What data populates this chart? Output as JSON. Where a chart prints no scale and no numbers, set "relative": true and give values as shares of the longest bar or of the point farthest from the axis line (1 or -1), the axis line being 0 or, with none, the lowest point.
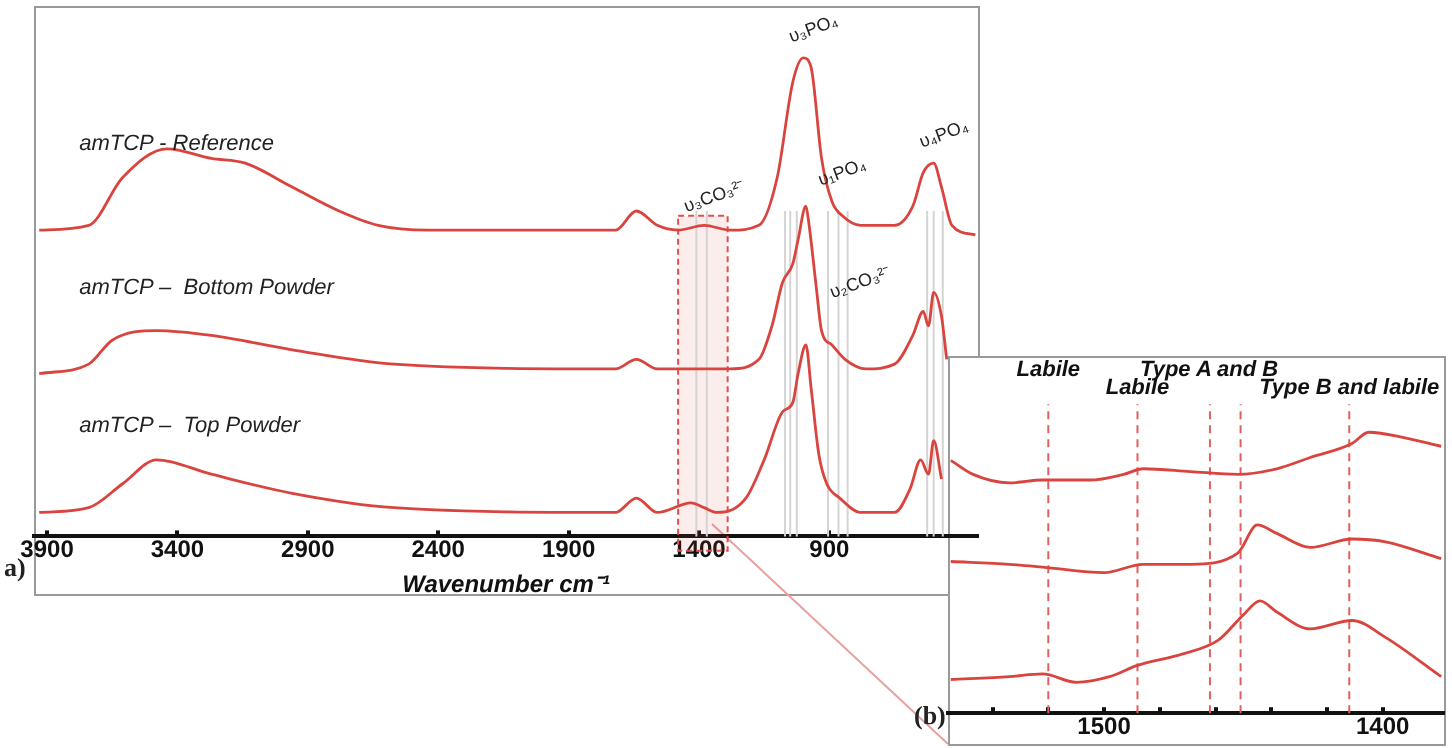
{
  "chart_data": [
    {
      "type": "line",
      "relative": true,
      "xlabel": "Wavenumber cm⁻¹",
      "xlim": [
        3950,
        330
      ],
      "xticks": [
        3900,
        3400,
        2900,
        2400,
        1900,
        1400,
        900
      ],
      "grid": false,
      "legend": false,
      "marker": "none",
      "series": [
        {
          "name": "amTCP - Reference",
          "color": "#d9443f",
          "x": [
            3930,
            3740,
            3610,
            3440,
            3270,
            3140,
            2960,
            2780,
            2630,
            2440,
            1720,
            1640,
            1560,
            1480,
            1380,
            1280,
            1170,
            1100,
            1040,
            1000,
            970,
            930,
            890,
            850,
            780,
            650,
            580,
            540,
            500,
            470,
            430,
            340
          ],
          "values": [
            0.64,
            0.65,
            0.75,
            0.81,
            0.79,
            0.78,
            0.73,
            0.68,
            0.65,
            0.64,
            0.64,
            0.68,
            0.65,
            0.64,
            0.65,
            0.64,
            0.65,
            0.75,
            0.95,
            1.0,
            0.98,
            0.79,
            0.7,
            0.67,
            0.65,
            0.65,
            0.69,
            0.76,
            0.78,
            0.73,
            0.65,
            0.63
          ]
        },
        {
          "name": "amTCP –  Bottom Powder",
          "color": "#d9443f",
          "x": [
            3930,
            3740,
            3650,
            3480,
            3270,
            2960,
            2570,
            1720,
            1640,
            1560,
            1430,
            1280,
            1170,
            1120,
            1080,
            1040,
            1020,
            990,
            980,
            950,
            930,
            890,
            840,
            760,
            650,
            580,
            540,
            520,
            500,
            470,
            450
          ],
          "values": [
            0.34,
            0.36,
            0.41,
            0.43,
            0.42,
            0.39,
            0.36,
            0.35,
            0.37,
            0.35,
            0.35,
            0.35,
            0.37,
            0.44,
            0.53,
            0.57,
            0.62,
            0.69,
            0.66,
            0.52,
            0.43,
            0.4,
            0.37,
            0.35,
            0.36,
            0.42,
            0.47,
            0.44,
            0.51,
            0.46,
            0.37
          ]
        },
        {
          "name": "amTCP –  Top Powder",
          "color": "#d9443f",
          "x": [
            3930,
            3740,
            3610,
            3480,
            3270,
            2960,
            2570,
            1720,
            1640,
            1560,
            1430,
            1380,
            1330,
            1220,
            1150,
            1080,
            1040,
            1020,
            990,
            970,
            940,
            910,
            860,
            780,
            650,
            590,
            550,
            520,
            500,
            470
          ],
          "values": [
            0.05,
            0.06,
            0.11,
            0.16,
            0.13,
            0.09,
            0.06,
            0.05,
            0.08,
            0.05,
            0.07,
            0.06,
            0.05,
            0.08,
            0.16,
            0.26,
            0.28,
            0.34,
            0.4,
            0.31,
            0.17,
            0.11,
            0.08,
            0.05,
            0.05,
            0.1,
            0.16,
            0.13,
            0.2,
            0.12
          ]
        }
      ],
      "annotations": [
        {
          "text": "υ₃PO₄",
          "x": 1000,
          "y": 1.0
        },
        {
          "text": "υ₁PO₄",
          "x": 890,
          "y": 0.7
        },
        {
          "text": "υ₄PO₄",
          "x": 500,
          "y": 0.78
        },
        {
          "text": "υ₃CO₃²⁻",
          "x": 1380,
          "y": 0.65
        },
        {
          "text": "υ₂CO₃²⁻",
          "x": 820,
          "y": 0.47
        },
        "a)"
      ],
      "bands": [
        {
          "axis": "x",
          "from": 1480,
          "to": 1290,
          "color": "#e05050"
        }
      ],
      "ref_lines": [
        {
          "axis": "x",
          "value": 1410,
          "color": "#d4d4d4",
          "line_style": "solid"
        },
        {
          "axis": "x",
          "value": 1370,
          "color": "#d4d4d4",
          "line_style": "solid"
        },
        {
          "axis": "x",
          "value": 1070,
          "color": "#d4d4d4",
          "line_style": "solid"
        },
        {
          "axis": "x",
          "value": 1050,
          "color": "#d4d4d4",
          "line_style": "solid"
        },
        {
          "axis": "x",
          "value": 1025,
          "color": "#d4d4d4",
          "line_style": "solid"
        },
        {
          "axis": "x",
          "value": 905,
          "color": "#d4d4d4",
          "line_style": "solid"
        },
        {
          "axis": "x",
          "value": 865,
          "color": "#d4d4d4",
          "line_style": "solid"
        },
        {
          "axis": "x",
          "value": 830,
          "color": "#d4d4d4",
          "line_style": "solid"
        },
        {
          "axis": "x",
          "value": 525,
          "color": "#d4d4d4",
          "line_style": "solid"
        },
        {
          "axis": "x",
          "value": 500,
          "color": "#d4d4d4",
          "line_style": "solid"
        },
        {
          "axis": "x",
          "value": 465,
          "color": "#d4d4d4",
          "line_style": "solid"
        }
      ]
    },
    {
      "type": "line",
      "relative": true,
      "xlim": [
        1556,
        1378
      ],
      "xticks": [
        {
          "value": 1540,
          "label": null
        },
        {
          "value": 1520,
          "label": null
        },
        1500,
        {
          "value": 1480,
          "label": null
        },
        {
          "value": 1460,
          "label": null
        },
        {
          "value": 1440,
          "label": null
        },
        {
          "value": 1420,
          "label": null
        },
        1400
      ],
      "grid": false,
      "legend": false,
      "marker": "none",
      "series": [
        {
          "color": "#d9443f",
          "x": [
            1555,
            1547,
            1534,
            1522,
            1505,
            1493,
            1486,
            1469,
            1452,
            1438,
            1426,
            1411,
            1405,
            1392,
            1379
          ],
          "values": [
            0.9,
            0.85,
            0.82,
            0.83,
            0.83,
            0.85,
            0.87,
            0.86,
            0.85,
            0.87,
            0.91,
            0.96,
            1.0,
            0.98,
            0.95
          ]
        },
        {
          "color": "#d9443f",
          "x": [
            1555,
            1534,
            1522,
            1500,
            1486,
            1469,
            1452,
            1445,
            1438,
            1426,
            1411,
            1399,
            1379
          ],
          "values": [
            0.54,
            0.53,
            0.52,
            0.5,
            0.53,
            0.53,
            0.57,
            0.67,
            0.64,
            0.59,
            0.62,
            0.61,
            0.55
          ]
        },
        {
          "color": "#d9443f",
          "x": [
            1555,
            1534,
            1522,
            1510,
            1498,
            1488,
            1472,
            1459,
            1450,
            1444,
            1438,
            1426,
            1411,
            1399,
            1379
          ],
          "values": [
            0.12,
            0.13,
            0.14,
            0.11,
            0.13,
            0.17,
            0.21,
            0.26,
            0.35,
            0.4,
            0.36,
            0.3,
            0.33,
            0.27,
            0.13
          ]
        }
      ],
      "annotations": [
        "(b)"
      ],
      "ref_lines": [
        {
          "axis": "x",
          "value": 1520,
          "label": "Labile",
          "color": "#e06060",
          "line_style": "dashed"
        },
        {
          "axis": "x",
          "value": 1488,
          "label": "Labile",
          "color": "#e06060",
          "line_style": "dashed"
        },
        {
          "axis": "x",
          "value": 1462,
          "label": "Type A and B",
          "color": "#e06060",
          "line_style": "dashed"
        },
        {
          "axis": "x",
          "value": 1451,
          "color": "#e06060",
          "line_style": "dashed"
        },
        {
          "axis": "x",
          "value": 1412,
          "label": "Type B and labile",
          "color": "#e06060",
          "line_style": "dashed"
        }
      ]
    }
  ]
}
